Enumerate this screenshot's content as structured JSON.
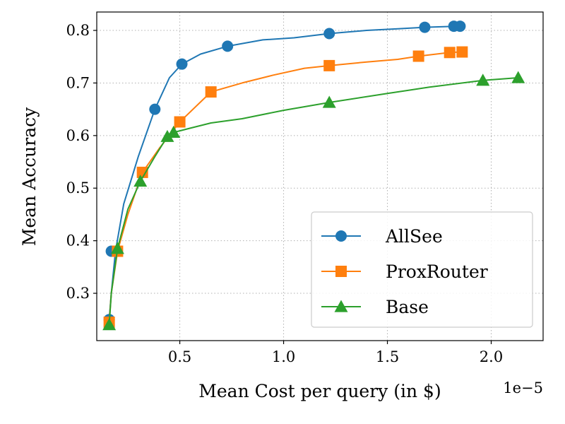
{
  "chart_data": {
    "type": "line",
    "xlabel": "Mean Cost per query (in $)",
    "ylabel": "Mean Accuracy",
    "x_offset_text": "1e−5",
    "xlim": [
      0.1,
      2.25
    ],
    "ylim": [
      0.21,
      0.835
    ],
    "xticks": [
      0.5,
      1.0,
      1.5,
      2.0
    ],
    "xtick_labels": [
      "0.5",
      "1.0",
      "1.5",
      "2.0"
    ],
    "yticks": [
      0.3,
      0.4,
      0.5,
      0.6,
      0.7,
      0.8
    ],
    "ytick_labels": [
      "0.3",
      "0.4",
      "0.5",
      "0.6",
      "0.7",
      "0.8"
    ],
    "grid": true,
    "legend_position": "bottom-right",
    "series": [
      {
        "name": "AllSee",
        "color": "#1f77b4",
        "marker": "circle",
        "line": [
          [
            0.16,
            0.25
          ],
          [
            0.17,
            0.3
          ],
          [
            0.19,
            0.38
          ],
          [
            0.23,
            0.47
          ],
          [
            0.3,
            0.56
          ],
          [
            0.38,
            0.65
          ],
          [
            0.45,
            0.71
          ],
          [
            0.51,
            0.736
          ],
          [
            0.6,
            0.755
          ],
          [
            0.73,
            0.77
          ],
          [
            0.9,
            0.782
          ],
          [
            1.05,
            0.786
          ],
          [
            1.22,
            0.794
          ],
          [
            1.4,
            0.8
          ],
          [
            1.55,
            0.803
          ],
          [
            1.68,
            0.806
          ],
          [
            1.85,
            0.808
          ]
        ],
        "markers": [
          [
            0.16,
            0.25
          ],
          [
            0.17,
            0.38
          ],
          [
            0.38,
            0.65
          ],
          [
            0.51,
            0.736
          ],
          [
            0.73,
            0.77
          ],
          [
            1.22,
            0.794
          ],
          [
            1.68,
            0.806
          ],
          [
            1.82,
            0.808
          ],
          [
            1.85,
            0.808
          ]
        ]
      },
      {
        "name": "ProxRouter",
        "color": "#ff7f0e",
        "marker": "square",
        "line": [
          [
            0.16,
            0.245
          ],
          [
            0.17,
            0.3
          ],
          [
            0.2,
            0.38
          ],
          [
            0.25,
            0.45
          ],
          [
            0.32,
            0.53
          ],
          [
            0.4,
            0.575
          ],
          [
            0.5,
            0.626
          ],
          [
            0.65,
            0.683
          ],
          [
            0.8,
            0.7
          ],
          [
            0.95,
            0.715
          ],
          [
            1.1,
            0.728
          ],
          [
            1.22,
            0.733
          ],
          [
            1.4,
            0.74
          ],
          [
            1.55,
            0.745
          ],
          [
            1.65,
            0.751
          ],
          [
            1.8,
            0.758
          ],
          [
            1.86,
            0.759
          ]
        ],
        "markers": [
          [
            0.16,
            0.245
          ],
          [
            0.2,
            0.38
          ],
          [
            0.32,
            0.53
          ],
          [
            0.5,
            0.626
          ],
          [
            0.65,
            0.683
          ],
          [
            1.22,
            0.733
          ],
          [
            1.65,
            0.751
          ],
          [
            1.8,
            0.758
          ],
          [
            1.86,
            0.759
          ]
        ]
      },
      {
        "name": "Base",
        "color": "#2ca02c",
        "marker": "triangle",
        "line": [
          [
            0.16,
            0.24
          ],
          [
            0.17,
            0.3
          ],
          [
            0.2,
            0.385
          ],
          [
            0.25,
            0.46
          ],
          [
            0.31,
            0.513
          ],
          [
            0.38,
            0.56
          ],
          [
            0.44,
            0.598
          ],
          [
            0.47,
            0.606
          ],
          [
            0.55,
            0.614
          ],
          [
            0.65,
            0.624
          ],
          [
            0.8,
            0.632
          ],
          [
            1.0,
            0.648
          ],
          [
            1.22,
            0.663
          ],
          [
            1.5,
            0.68
          ],
          [
            1.7,
            0.692
          ],
          [
            1.96,
            0.705
          ],
          [
            2.13,
            0.71
          ]
        ],
        "markers": [
          [
            0.16,
            0.24
          ],
          [
            0.2,
            0.385
          ],
          [
            0.31,
            0.513
          ],
          [
            0.44,
            0.598
          ],
          [
            0.47,
            0.606
          ],
          [
            1.22,
            0.663
          ],
          [
            1.96,
            0.705
          ],
          [
            2.13,
            0.71
          ]
        ]
      }
    ]
  }
}
